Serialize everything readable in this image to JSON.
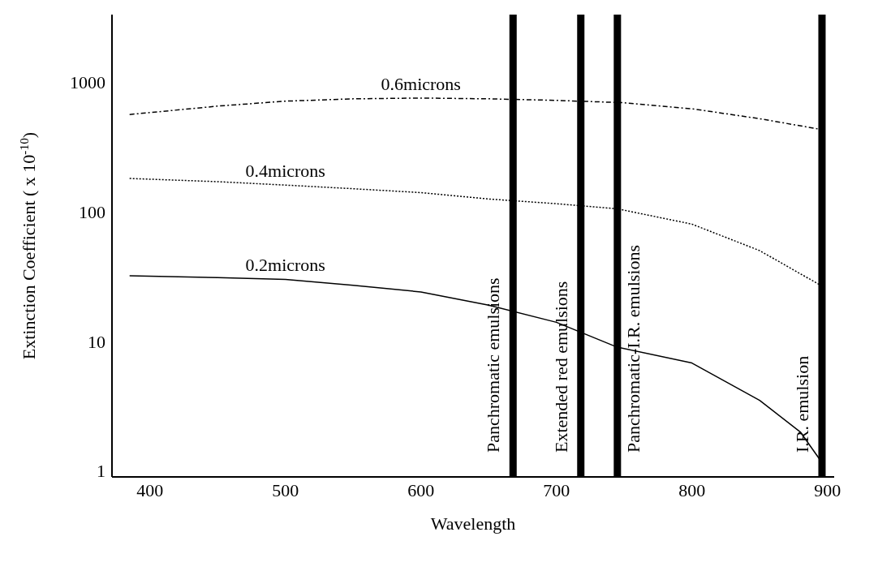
{
  "chart_data": {
    "type": "line",
    "xlabel": "Wavelength",
    "ylabel": "Extinction Coefficient ( x 10$^{-10}$)",
    "log": "y",
    "marker": "none",
    "xlim": [
      372,
      905
    ],
    "xticks": [
      400,
      500,
      600,
      700,
      800,
      900
    ],
    "ylim": [
      0.9,
      3300
    ],
    "yticks": [
      1,
      10,
      100,
      1000
    ],
    "series": [
      {
        "name": "0.6microns",
        "color": "#000000",
        "line_style": "dashed",
        "x": [
          385,
          450,
          500,
          550,
          600,
          650,
          700,
          750,
          800,
          850,
          895
        ],
        "values": [
          560,
          650,
          710,
          740,
          750,
          740,
          720,
          690,
          620,
          520,
          430
        ]
      },
      {
        "name": "0.4microns",
        "color": "#000000",
        "line_style": "dotted",
        "x": [
          385,
          450,
          500,
          550,
          600,
          650,
          700,
          745,
          800,
          850,
          895
        ],
        "values": [
          180,
          170,
          160,
          150,
          140,
          125,
          115,
          105,
          80,
          50,
          27
        ]
      },
      {
        "name": "0.2microns",
        "color": "#000000",
        "line_style": "solid",
        "x": [
          385,
          450,
          500,
          550,
          600,
          650,
          700,
          745,
          800,
          850,
          880,
          895
        ],
        "values": [
          32,
          31,
          30,
          27,
          24,
          19,
          14,
          9,
          6.8,
          3.5,
          2,
          1.2
        ]
      }
    ],
    "ref_lines": [
      {
        "axis": "x",
        "value": 668,
        "label": "Panchromatic emulsions"
      },
      {
        "axis": "x",
        "value": 718,
        "label": "Extended red emulsions"
      },
      {
        "axis": "x",
        "value": 745,
        "label": "Panchromatic-I.R. emulsions"
      },
      {
        "axis": "x",
        "value": 896,
        "label": "I.R. emulsion"
      }
    ]
  }
}
